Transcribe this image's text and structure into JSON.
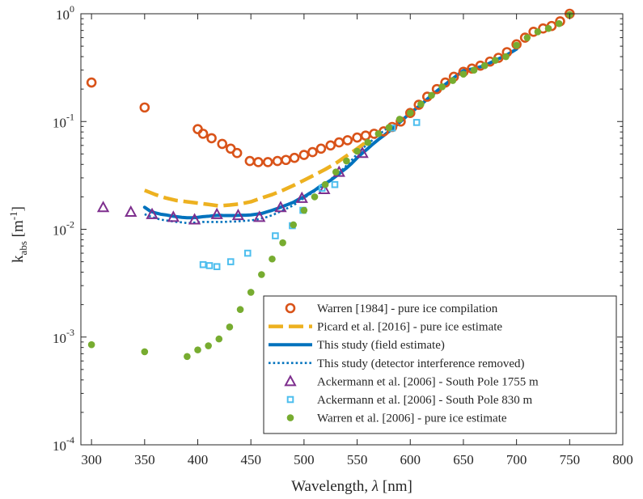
{
  "chart_data": {
    "type": "scatter",
    "title": "",
    "xlabel": {
      "text": "Wavelength, ",
      "symbol": "λ",
      "unit": " [nm]"
    },
    "ylabel": {
      "k": "k",
      "sub": "abs",
      "unit": " [m",
      "sup": "-1",
      "close": "]"
    },
    "xlim": [
      290,
      800
    ],
    "ylim": [
      0.0001,
      1
    ],
    "yscale": "log",
    "grid": false,
    "legend_position": "bottom-right",
    "xticks": [
      300,
      350,
      400,
      450,
      500,
      550,
      600,
      650,
      700,
      750,
      800
    ],
    "xtick_labels": [
      "300",
      "350",
      "400",
      "450",
      "500",
      "550",
      "600",
      "650",
      "700",
      "750",
      "800"
    ],
    "yticks": [
      {
        "value": 1,
        "base": "10",
        "exp": "0"
      },
      {
        "value": 0.1,
        "base": "10",
        "exp": "-1"
      },
      {
        "value": 0.01,
        "base": "10",
        "exp": "-2"
      },
      {
        "value": 0.001,
        "base": "10",
        "exp": "-3"
      },
      {
        "value": 0.0001,
        "base": "10",
        "exp": "-4"
      }
    ],
    "series": [
      {
        "name": "Warren [1984] - pure ice compilation",
        "style": "circle-open",
        "color": "#d95319",
        "x": [
          300,
          350,
          400,
          405,
          413,
          423,
          431,
          437,
          449,
          457,
          466,
          475,
          483,
          491,
          500,
          508,
          516,
          525,
          533,
          541,
          550,
          558,
          566,
          575,
          583,
          591,
          600,
          608,
          616,
          625,
          633,
          641,
          650,
          658,
          666,
          675,
          683,
          691,
          700,
          708,
          716,
          725,
          733,
          741,
          750
        ],
        "y": [
          0.23,
          0.135,
          0.085,
          0.077,
          0.07,
          0.062,
          0.056,
          0.051,
          0.043,
          0.042,
          0.042,
          0.043,
          0.044,
          0.046,
          0.049,
          0.052,
          0.056,
          0.06,
          0.064,
          0.067,
          0.071,
          0.074,
          0.077,
          0.081,
          0.089,
          0.1,
          0.12,
          0.143,
          0.17,
          0.2,
          0.23,
          0.26,
          0.289,
          0.31,
          0.33,
          0.36,
          0.39,
          0.44,
          0.52,
          0.6,
          0.68,
          0.73,
          0.77,
          0.85,
          1.0
        ]
      },
      {
        "name": "Picard et al. [2016] - pure ice estimate",
        "style": "dash",
        "color": "#edb120",
        "x": [
          350,
          360,
          370,
          380,
          390,
          400,
          410,
          420,
          430,
          440,
          450,
          460,
          470,
          480,
          490,
          500,
          510,
          520,
          530,
          540,
          550,
          560
        ],
        "y": [
          0.023,
          0.021,
          0.0195,
          0.0185,
          0.018,
          0.0175,
          0.017,
          0.0165,
          0.0168,
          0.0172,
          0.018,
          0.0195,
          0.021,
          0.023,
          0.0255,
          0.0285,
          0.032,
          0.036,
          0.041,
          0.048,
          0.056,
          0.066
        ]
      },
      {
        "name": "This study (field estimate)",
        "style": "solid",
        "color": "#0072bd",
        "x": [
          350,
          355,
          360,
          365,
          370,
          375,
          380,
          385,
          390,
          395,
          400,
          405,
          410,
          415,
          420,
          425,
          430,
          435,
          440,
          445,
          450,
          455,
          460,
          465,
          470,
          475,
          480,
          485,
          490,
          495,
          500,
          505,
          510,
          515,
          520,
          525,
          530,
          535,
          540,
          545,
          550,
          555,
          560,
          565,
          570,
          575,
          580,
          590,
          600,
          610,
          620,
          630,
          640,
          650,
          660,
          670,
          680,
          690,
          700
        ],
        "y": [
          0.016,
          0.0148,
          0.0142,
          0.0138,
          0.0136,
          0.0133,
          0.0131,
          0.0129,
          0.0128,
          0.0128,
          0.0129,
          0.0131,
          0.0132,
          0.0134,
          0.0135,
          0.0134,
          0.0134,
          0.0134,
          0.0135,
          0.0135,
          0.0136,
          0.0138,
          0.014,
          0.0145,
          0.015,
          0.0156,
          0.0163,
          0.017,
          0.0178,
          0.019,
          0.02,
          0.0215,
          0.023,
          0.025,
          0.0265,
          0.0285,
          0.031,
          0.034,
          0.037,
          0.041,
          0.046,
          0.051,
          0.056,
          0.062,
          0.068,
          0.074,
          0.081,
          0.098,
          0.12,
          0.143,
          0.175,
          0.21,
          0.25,
          0.297,
          0.31,
          0.33,
          0.37,
          0.41,
          0.47
        ]
      },
      {
        "name": "This study (detector interference removed)",
        "style": "dot",
        "color": "#0072bd",
        "x": [
          350,
          355,
          360,
          365,
          370,
          375,
          380,
          385,
          390,
          395,
          400,
          405,
          410,
          415,
          420,
          425,
          430,
          435,
          440,
          445,
          450,
          455,
          460,
          465,
          470,
          475,
          480,
          485,
          490,
          495,
          500,
          505,
          510,
          515,
          520,
          525,
          530,
          535,
          540,
          545,
          550,
          555,
          560,
          565,
          570,
          575,
          580
        ],
        "y": [
          0.0138,
          0.0132,
          0.0127,
          0.0123,
          0.0121,
          0.0119,
          0.0117,
          0.0116,
          0.0114,
          0.0115,
          0.0116,
          0.0117,
          0.0117,
          0.0117,
          0.0117,
          0.0117,
          0.0118,
          0.0118,
          0.0119,
          0.012,
          0.0121,
          0.0123,
          0.0126,
          0.013,
          0.0135,
          0.0142,
          0.015,
          0.0158,
          0.0167,
          0.018,
          0.0195,
          0.021,
          0.0225,
          0.0245,
          0.0265,
          0.029,
          0.032,
          0.035,
          0.039,
          0.044,
          0.05,
          0.056,
          0.062,
          0.068,
          0.075,
          0.082,
          0.089
        ]
      },
      {
        "name": "Ackermann et al. [2006] - South Pole 1755 m",
        "style": "triangle-open",
        "color": "#7e2f8e",
        "x": [
          311,
          337,
          357,
          377,
          397,
          418,
          438,
          458,
          478,
          498,
          519,
          533,
          555
        ],
        "y": [
          0.016,
          0.0145,
          0.0138,
          0.013,
          0.0123,
          0.0138,
          0.0135,
          0.013,
          0.016,
          0.0195,
          0.0235,
          0.034,
          0.051
        ]
      },
      {
        "name": "Ackermann et al. [2006] - South Pole 830 m",
        "style": "square-open",
        "color": "#4dbeee",
        "x": [
          405,
          411,
          418,
          431,
          447,
          473,
          489,
          499,
          517,
          529,
          583,
          606
        ],
        "y": [
          0.0047,
          0.0046,
          0.0045,
          0.005,
          0.006,
          0.0087,
          0.0108,
          0.015,
          0.024,
          0.026,
          0.087,
          0.098
        ]
      },
      {
        "name": "Warren et al. [2006] - pure ice estimate",
        "style": "circle-filled",
        "color": "#77ac30",
        "x": [
          300,
          350,
          390,
          400,
          410,
          420,
          430,
          440,
          450,
          460,
          470,
          480,
          490,
          500,
          510,
          520,
          530,
          540,
          550,
          560,
          570,
          580,
          590,
          600,
          610,
          620,
          630,
          640,
          650,
          660,
          670,
          680,
          690,
          700,
          710,
          720,
          730,
          740,
          750
        ],
        "y": [
          0.00085,
          0.00073,
          0.00066,
          0.00076,
          0.00083,
          0.00096,
          0.00124,
          0.0018,
          0.0026,
          0.0038,
          0.0053,
          0.0075,
          0.011,
          0.015,
          0.02,
          0.026,
          0.034,
          0.043,
          0.053,
          0.064,
          0.077,
          0.088,
          0.105,
          0.12,
          0.145,
          0.175,
          0.21,
          0.24,
          0.275,
          0.3,
          0.33,
          0.37,
          0.4,
          0.51,
          0.6,
          0.68,
          0.73,
          0.81,
          0.98
        ]
      }
    ]
  }
}
